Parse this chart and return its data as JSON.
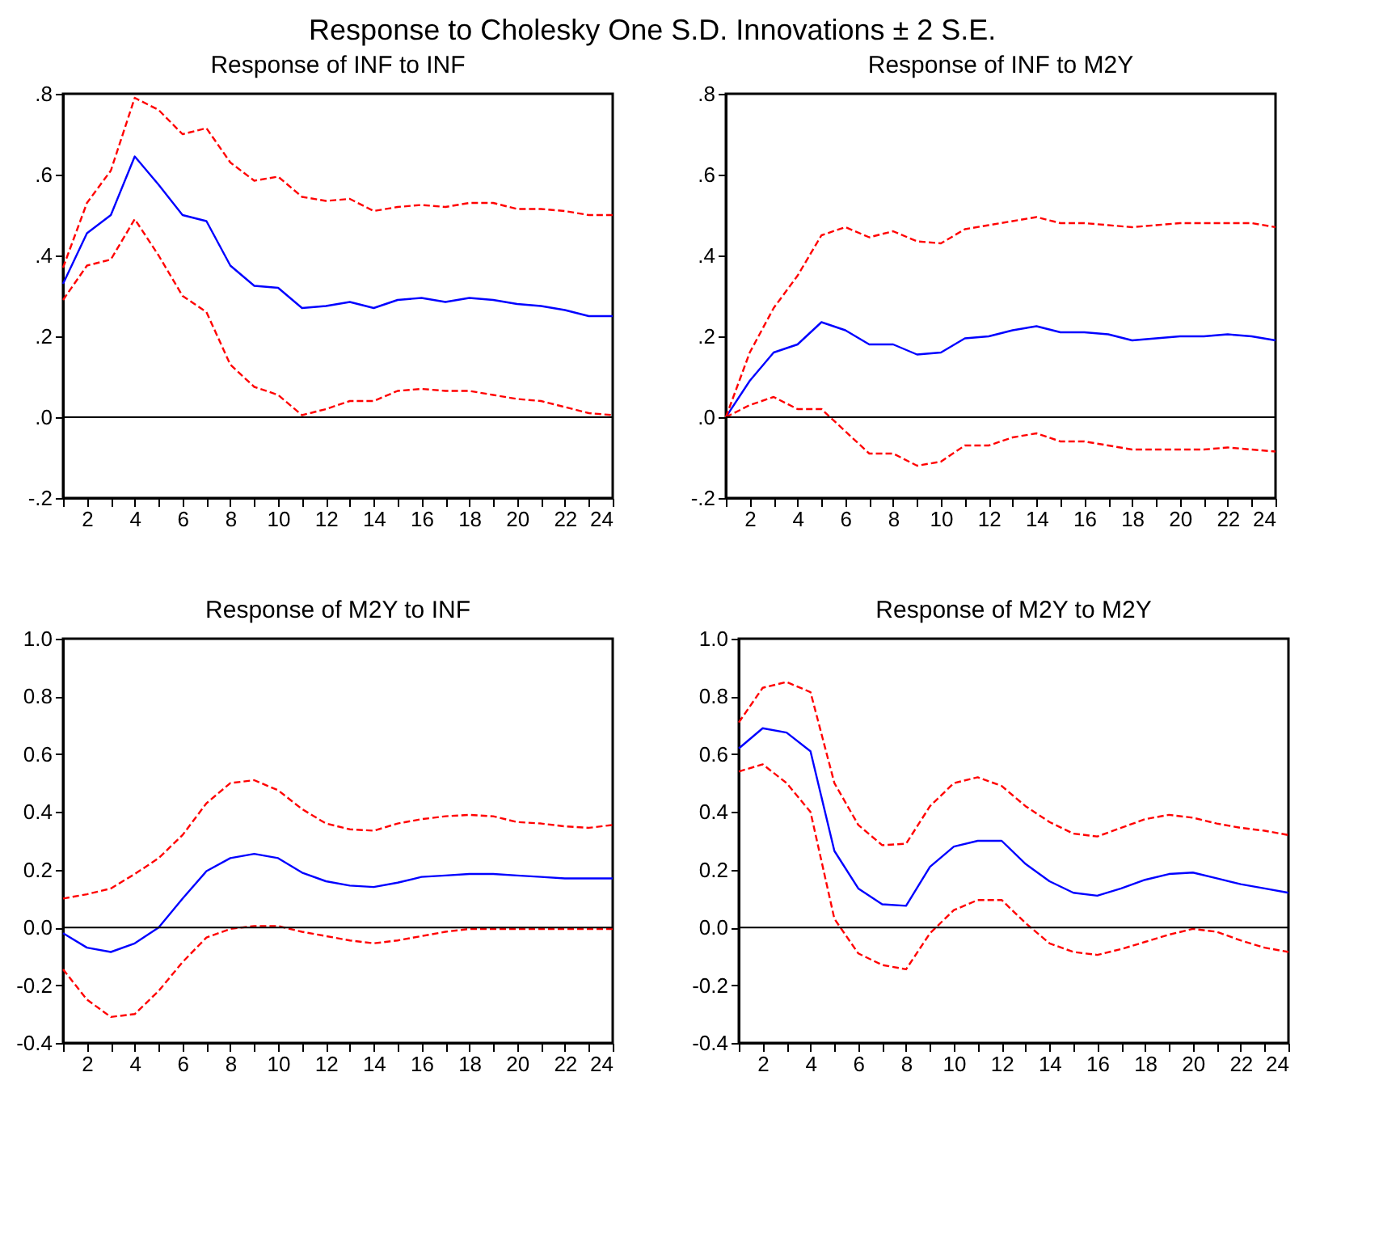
{
  "chart_data": [
    {
      "type": "line",
      "title": "Response of INF to INF",
      "annotations": [
        "Response to Cholesky One S.D. Innovations ± 2 S.E."
      ],
      "x": [
        1,
        2,
        3,
        4,
        5,
        6,
        7,
        8,
        9,
        10,
        11,
        12,
        13,
        14,
        15,
        16,
        17,
        18,
        19,
        20,
        21,
        22,
        23,
        24
      ],
      "xlim": [
        1,
        24
      ],
      "xticks": [
        {
          "value": 1,
          "label": null
        },
        2,
        {
          "value": 3,
          "label": null
        },
        4,
        {
          "value": 5,
          "label": null
        },
        6,
        {
          "value": 7,
          "label": null
        },
        8,
        {
          "value": 9,
          "label": null
        },
        10,
        {
          "value": 11,
          "label": null
        },
        12,
        {
          "value": 13,
          "label": null
        },
        14,
        {
          "value": 15,
          "label": null
        },
        16,
        {
          "value": 17,
          "label": null
        },
        18,
        {
          "value": 19,
          "label": null
        },
        20,
        {
          "value": 21,
          "label": null
        },
        22,
        {
          "value": 23,
          "label": null
        },
        24
      ],
      "ylim": [
        -0.2,
        0.8
      ],
      "yticks": [
        {
          "value": -0.2,
          "label": "-.2"
        },
        {
          "value": 0,
          "label": ".0"
        },
        {
          "value": 0.2,
          "label": ".2"
        },
        {
          "value": 0.4,
          "label": ".4"
        },
        {
          "value": 0.6,
          "label": ".6"
        },
        {
          "value": 0.8,
          "label": ".8"
        }
      ],
      "grid": false,
      "ref_lines": [
        {
          "axis": "y",
          "value": 0,
          "color": "#000000",
          "line_style": "solid"
        }
      ],
      "series": [
        {
          "color": "#0000ff",
          "line_style": "solid",
          "values": [
            0.33,
            0.455,
            0.5,
            0.645,
            0.575,
            0.5,
            0.485,
            0.375,
            0.325,
            0.32,
            0.27,
            0.275,
            0.285,
            0.27,
            0.29,
            0.295,
            0.285,
            0.295,
            0.29,
            0.28,
            0.275,
            0.265,
            0.25,
            0.25
          ]
        },
        {
          "color": "#ff0000",
          "line_style": "dashed",
          "values": [
            0.37,
            0.53,
            0.61,
            0.79,
            0.76,
            0.7,
            0.715,
            0.63,
            0.585,
            0.595,
            0.545,
            0.535,
            0.54,
            0.51,
            0.52,
            0.525,
            0.52,
            0.53,
            0.53,
            0.515,
            0.515,
            0.51,
            0.5,
            0.5
          ]
        },
        {
          "color": "#ff0000",
          "line_style": "dashed",
          "values": [
            0.29,
            0.375,
            0.39,
            0.49,
            0.4,
            0.3,
            0.26,
            0.13,
            0.075,
            0.055,
            0.005,
            0.02,
            0.04,
            0.04,
            0.065,
            0.07,
            0.065,
            0.065,
            0.055,
            0.045,
            0.04,
            0.025,
            0.01,
            0.005
          ]
        }
      ]
    },
    {
      "type": "line",
      "title": "Response of INF to M2Y",
      "x": [
        1,
        2,
        3,
        4,
        5,
        6,
        7,
        8,
        9,
        10,
        11,
        12,
        13,
        14,
        15,
        16,
        17,
        18,
        19,
        20,
        21,
        22,
        23,
        24
      ],
      "xlim": [
        1,
        24
      ],
      "xticks": [
        {
          "value": 1,
          "label": null
        },
        2,
        {
          "value": 3,
          "label": null
        },
        4,
        {
          "value": 5,
          "label": null
        },
        6,
        {
          "value": 7,
          "label": null
        },
        8,
        {
          "value": 9,
          "label": null
        },
        10,
        {
          "value": 11,
          "label": null
        },
        12,
        {
          "value": 13,
          "label": null
        },
        14,
        {
          "value": 15,
          "label": null
        },
        16,
        {
          "value": 17,
          "label": null
        },
        18,
        {
          "value": 19,
          "label": null
        },
        20,
        {
          "value": 21,
          "label": null
        },
        22,
        {
          "value": 23,
          "label": null
        },
        24
      ],
      "ylim": [
        -0.2,
        0.8
      ],
      "yticks": [
        {
          "value": -0.2,
          "label": "-.2"
        },
        {
          "value": 0,
          "label": ".0"
        },
        {
          "value": 0.2,
          "label": ".2"
        },
        {
          "value": 0.4,
          "label": ".4"
        },
        {
          "value": 0.6,
          "label": ".6"
        },
        {
          "value": 0.8,
          "label": ".8"
        }
      ],
      "grid": false,
      "ref_lines": [
        {
          "axis": "y",
          "value": 0,
          "color": "#000000",
          "line_style": "solid"
        }
      ],
      "series": [
        {
          "color": "#0000ff",
          "line_style": "solid",
          "values": [
            0,
            0.09,
            0.16,
            0.18,
            0.235,
            0.215,
            0.18,
            0.18,
            0.155,
            0.16,
            0.195,
            0.2,
            0.215,
            0.225,
            0.21,
            0.21,
            0.205,
            0.19,
            0.195,
            0.2,
            0.2,
            0.205,
            0.2,
            0.19
          ]
        },
        {
          "color": "#ff0000",
          "line_style": "dashed",
          "values": [
            0,
            0.16,
            0.27,
            0.35,
            0.45,
            0.47,
            0.445,
            0.46,
            0.435,
            0.43,
            0.465,
            0.475,
            0.485,
            0.495,
            0.48,
            0.48,
            0.475,
            0.47,
            0.475,
            0.48,
            0.48,
            0.48,
            0.48,
            0.47
          ]
        },
        {
          "color": "#ff0000",
          "line_style": "dashed",
          "values": [
            0,
            0.03,
            0.05,
            0.02,
            0.02,
            -0.035,
            -0.09,
            -0.09,
            -0.12,
            -0.11,
            -0.07,
            -0.07,
            -0.05,
            -0.04,
            -0.06,
            -0.06,
            -0.07,
            -0.08,
            -0.08,
            -0.08,
            -0.08,
            -0.075,
            -0.08,
            -0.085
          ]
        }
      ]
    },
    {
      "type": "line",
      "title": "Response of M2Y to INF",
      "x": [
        1,
        2,
        3,
        4,
        5,
        6,
        7,
        8,
        9,
        10,
        11,
        12,
        13,
        14,
        15,
        16,
        17,
        18,
        19,
        20,
        21,
        22,
        23,
        24
      ],
      "xlim": [
        1,
        24
      ],
      "xticks": [
        {
          "value": 1,
          "label": null
        },
        2,
        {
          "value": 3,
          "label": null
        },
        4,
        {
          "value": 5,
          "label": null
        },
        6,
        {
          "value": 7,
          "label": null
        },
        8,
        {
          "value": 9,
          "label": null
        },
        10,
        {
          "value": 11,
          "label": null
        },
        12,
        {
          "value": 13,
          "label": null
        },
        14,
        {
          "value": 15,
          "label": null
        },
        16,
        {
          "value": 17,
          "label": null
        },
        18,
        {
          "value": 19,
          "label": null
        },
        20,
        {
          "value": 21,
          "label": null
        },
        22,
        {
          "value": 23,
          "label": null
        },
        24
      ],
      "ylim": [
        -0.4,
        1.0
      ],
      "yticks": [
        {
          "value": -0.4,
          "label": "-0.4"
        },
        {
          "value": -0.2,
          "label": "-0.2"
        },
        {
          "value": 0,
          "label": "0.0"
        },
        {
          "value": 0.2,
          "label": "0.2"
        },
        {
          "value": 0.4,
          "label": "0.4"
        },
        {
          "value": 0.6,
          "label": "0.6"
        },
        {
          "value": 0.8,
          "label": "0.8"
        },
        {
          "value": 1.0,
          "label": "1.0"
        }
      ],
      "grid": false,
      "ref_lines": [
        {
          "axis": "y",
          "value": 0,
          "color": "#000000",
          "line_style": "solid"
        }
      ],
      "series": [
        {
          "color": "#0000ff",
          "line_style": "solid",
          "values": [
            -0.02,
            -0.07,
            -0.085,
            -0.055,
            0.0,
            0.1,
            0.195,
            0.24,
            0.255,
            0.24,
            0.19,
            0.16,
            0.145,
            0.14,
            0.155,
            0.175,
            0.18,
            0.185,
            0.185,
            0.18,
            0.175,
            0.17,
            0.17,
            0.17
          ]
        },
        {
          "color": "#ff0000",
          "line_style": "dashed",
          "values": [
            0.1,
            0.115,
            0.135,
            0.185,
            0.24,
            0.32,
            0.43,
            0.5,
            0.51,
            0.475,
            0.41,
            0.36,
            0.34,
            0.335,
            0.36,
            0.375,
            0.385,
            0.39,
            0.385,
            0.365,
            0.36,
            0.35,
            0.345,
            0.355
          ]
        },
        {
          "color": "#ff0000",
          "line_style": "dashed",
          "values": [
            -0.145,
            -0.25,
            -0.31,
            -0.3,
            -0.22,
            -0.12,
            -0.035,
            -0.005,
            0.005,
            0.005,
            -0.015,
            -0.03,
            -0.045,
            -0.055,
            -0.045,
            -0.03,
            -0.015,
            -0.005,
            -0.005,
            -0.005,
            -0.005,
            -0.005,
            -0.005,
            -0.005
          ]
        }
      ]
    },
    {
      "type": "line",
      "title": "Response of M2Y to M2Y",
      "x": [
        1,
        2,
        3,
        4,
        5,
        6,
        7,
        8,
        9,
        10,
        11,
        12,
        13,
        14,
        15,
        16,
        17,
        18,
        19,
        20,
        21,
        22,
        23,
        24
      ],
      "xlim": [
        1,
        24
      ],
      "xticks": [
        {
          "value": 1,
          "label": null
        },
        2,
        {
          "value": 3,
          "label": null
        },
        4,
        {
          "value": 5,
          "label": null
        },
        6,
        {
          "value": 7,
          "label": null
        },
        8,
        {
          "value": 9,
          "label": null
        },
        10,
        {
          "value": 11,
          "label": null
        },
        12,
        {
          "value": 13,
          "label": null
        },
        14,
        {
          "value": 15,
          "label": null
        },
        16,
        {
          "value": 17,
          "label": null
        },
        18,
        {
          "value": 19,
          "label": null
        },
        20,
        {
          "value": 21,
          "label": null
        },
        22,
        {
          "value": 23,
          "label": null
        },
        24
      ],
      "ylim": [
        -0.4,
        1.0
      ],
      "yticks": [
        {
          "value": -0.4,
          "label": "-0.4"
        },
        {
          "value": -0.2,
          "label": "-0.2"
        },
        {
          "value": 0,
          "label": "0.0"
        },
        {
          "value": 0.2,
          "label": "0.2"
        },
        {
          "value": 0.4,
          "label": "0.4"
        },
        {
          "value": 0.6,
          "label": "0.6"
        },
        {
          "value": 0.8,
          "label": "0.8"
        },
        {
          "value": 1.0,
          "label": "1.0"
        }
      ],
      "grid": false,
      "ref_lines": [
        {
          "axis": "y",
          "value": 0,
          "color": "#000000",
          "line_style": "solid"
        }
      ],
      "series": [
        {
          "color": "#0000ff",
          "line_style": "solid",
          "values": [
            0.62,
            0.69,
            0.675,
            0.61,
            0.265,
            0.135,
            0.08,
            0.075,
            0.21,
            0.28,
            0.3,
            0.3,
            0.22,
            0.16,
            0.12,
            0.11,
            0.135,
            0.165,
            0.185,
            0.19,
            0.17,
            0.15,
            0.135,
            0.12
          ]
        },
        {
          "color": "#ff0000",
          "line_style": "dashed",
          "values": [
            0.71,
            0.83,
            0.85,
            0.815,
            0.5,
            0.355,
            0.285,
            0.29,
            0.42,
            0.5,
            0.52,
            0.49,
            0.42,
            0.365,
            0.325,
            0.315,
            0.345,
            0.375,
            0.39,
            0.38,
            0.36,
            0.345,
            0.335,
            0.32
          ]
        },
        {
          "color": "#ff0000",
          "line_style": "dashed",
          "values": [
            0.54,
            0.565,
            0.5,
            0.4,
            0.03,
            -0.09,
            -0.13,
            -0.145,
            -0.02,
            0.06,
            0.095,
            0.095,
            0.015,
            -0.055,
            -0.085,
            -0.095,
            -0.075,
            -0.05,
            -0.025,
            -0.005,
            -0.015,
            -0.045,
            -0.07,
            -0.085
          ]
        }
      ]
    }
  ]
}
